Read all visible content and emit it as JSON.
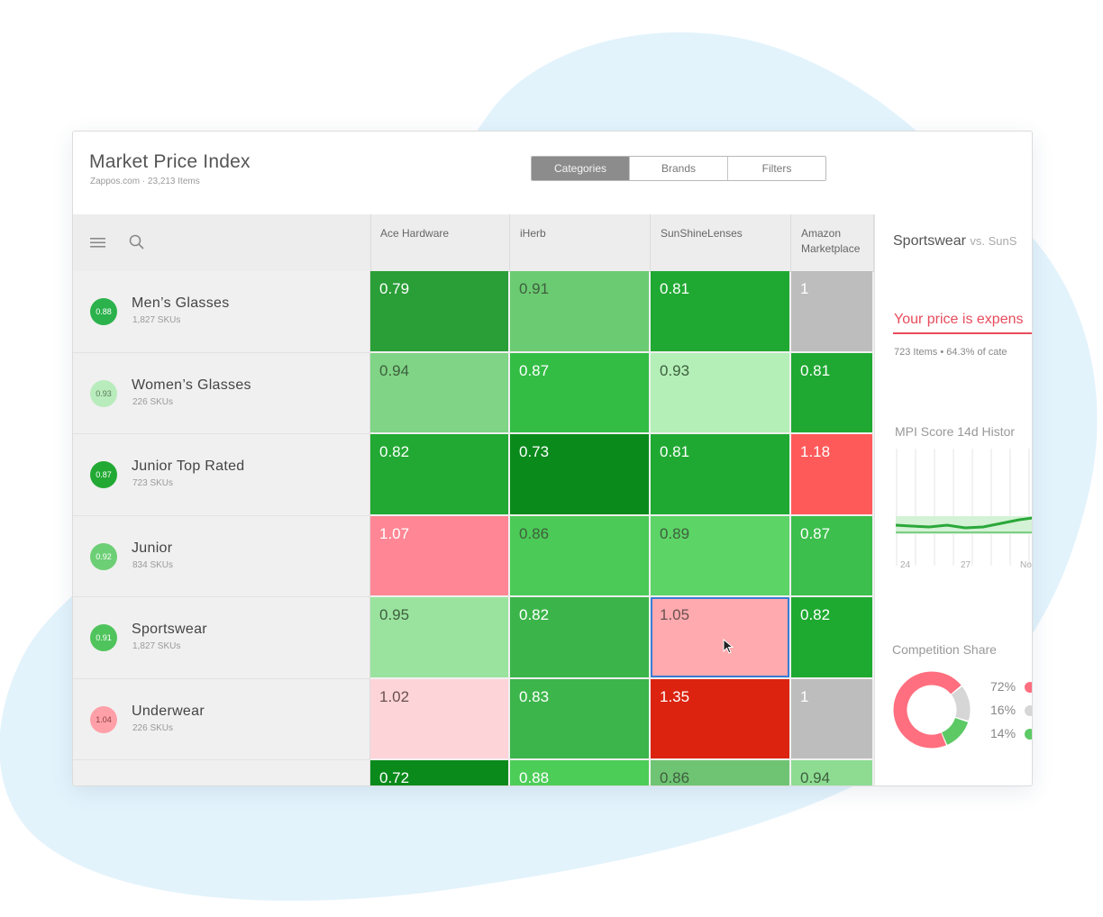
{
  "header": {
    "title": "Market Price Index",
    "subtitle": "Zappos.com  ·  23,213 Items",
    "tabs": [
      {
        "label": "Categories",
        "active": true
      },
      {
        "label": "Brands",
        "active": false
      },
      {
        "label": "Filters",
        "active": false
      }
    ]
  },
  "toolbar": {
    "menu_icon": "hamburger-menu-icon",
    "search_icon": "search-icon"
  },
  "columns": [
    "Ace Hardware",
    "iHerb",
    "SunShineLenses",
    "Amazon\nMarketplace"
  ],
  "rows": [
    {
      "name": "Men’s Glasses",
      "sub": "1,827 SKUs",
      "score": "0.88",
      "score_color": "#2bb24c",
      "cells": [
        {
          "v": "0.79",
          "c": "#2a9e37"
        },
        {
          "v": "0.91",
          "c": "#6bcb72"
        },
        {
          "v": "0.81",
          "c": "#20a932"
        },
        {
          "v": "1",
          "c": "#bdbdbd"
        }
      ]
    },
    {
      "name": "Women’s Glasses",
      "sub": "226 SKUs",
      "score": "0.93",
      "score_color": "#b9ecbc",
      "cells": [
        {
          "v": "0.94",
          "c": "#7fd485"
        },
        {
          "v": "0.87",
          "c": "#33bd45"
        },
        {
          "v": "0.93",
          "c": "#b4efb7"
        },
        {
          "v": "0.81",
          "c": "#20a932"
        }
      ]
    },
    {
      "name": "Junior Top Rated",
      "sub": "723 SKUs",
      "score": "0.87",
      "score_color": "#22a933",
      "cells": [
        {
          "v": "0.82",
          "c": "#22a933"
        },
        {
          "v": "0.73",
          "c": "#0b8a1c"
        },
        {
          "v": "0.81",
          "c": "#20a932"
        },
        {
          "v": "1.18",
          "c": "#ff5a5a"
        }
      ]
    },
    {
      "name": "Junior",
      "sub": "834 SKUs",
      "score": "0.92",
      "score_color": "#6ccf75",
      "cells": [
        {
          "v": "1.07",
          "c": "#ff8795"
        },
        {
          "v": "0.86",
          "c": "#4cca57"
        },
        {
          "v": "0.89",
          "c": "#5cd466"
        },
        {
          "v": "0.87",
          "c": "#3cbf4c"
        }
      ]
    },
    {
      "name": "Sportswear",
      "sub": "1,827 SKUs",
      "score": "0.91",
      "score_color": "#50c45c",
      "cells": [
        {
          "v": "0.95",
          "c": "#9ae39f"
        },
        {
          "v": "0.82",
          "c": "#3bb54a"
        },
        {
          "v": "1.05",
          "c": "#ffaaae",
          "selected": true
        },
        {
          "v": "0.82",
          "c": "#1eaa30"
        }
      ]
    },
    {
      "name": "Underwear",
      "sub": "226 SKUs",
      "score": "1.04",
      "score_color": "#ffa0a8",
      "cells": [
        {
          "v": "1.02",
          "c": "#fdd4d8"
        },
        {
          "v": "0.83",
          "c": "#3cb54b"
        },
        {
          "v": "1.35",
          "c": "#db2310"
        },
        {
          "v": "1",
          "c": "#bdbdbd"
        }
      ]
    },
    {
      "name": "",
      "sub": "",
      "score": "",
      "score_color": "#2bb24c",
      "cells": [
        {
          "v": "0.72",
          "c": "#0a8a1b"
        },
        {
          "v": "0.88",
          "c": "#4ccd58"
        },
        {
          "v": "0.86",
          "c": "#6fc473"
        },
        {
          "v": "0.94",
          "c": "#8ddc92"
        }
      ]
    }
  ],
  "side": {
    "title": "Sportswear",
    "vs": "vs. SunS",
    "alert": "Your price is expens",
    "meta": "723 Items  •  64.3% of cate",
    "history_title": "MPI Score 14d Histor",
    "history_ticks": [
      "24",
      "27",
      "No"
    ],
    "share_title": "Competition Share",
    "share": [
      {
        "pct": "72%",
        "value": 72,
        "color": "#ff6f7f"
      },
      {
        "pct": "16%",
        "value": 16,
        "color": "#d6d6d6"
      },
      {
        "pct": "14%",
        "value": 14,
        "color": "#5cc965"
      }
    ]
  },
  "colors": {
    "blob": "#e3f3fc",
    "selection": "#3a7bd5",
    "alert": "#e74c5c"
  }
}
